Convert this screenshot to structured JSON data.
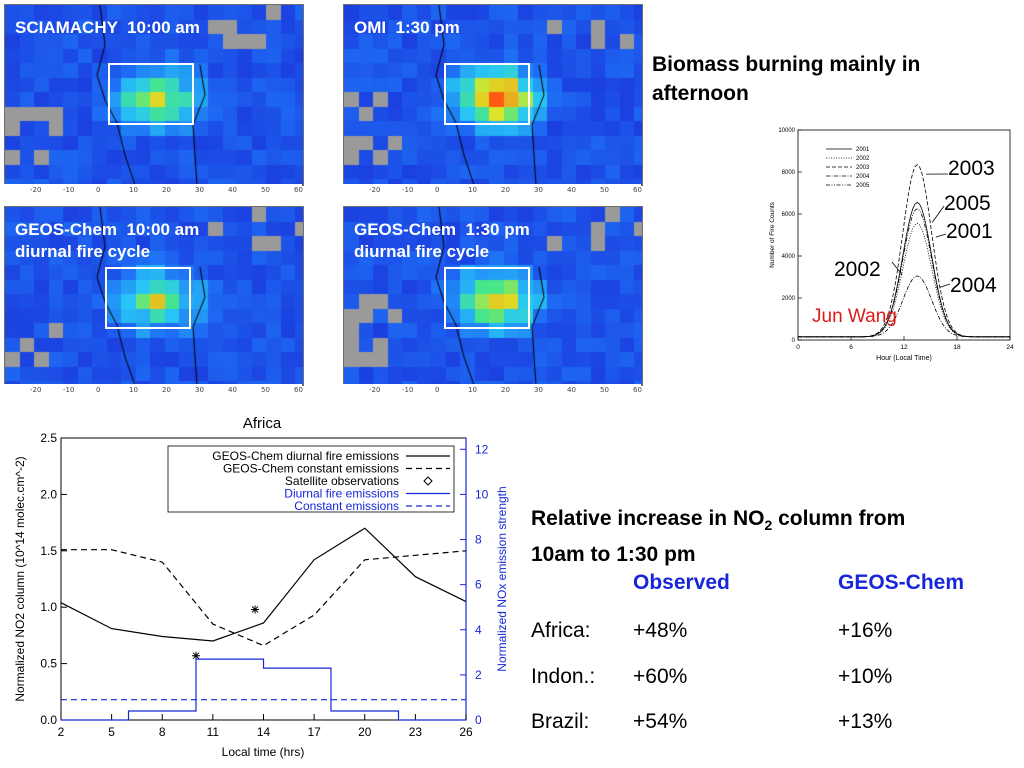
{
  "maps": [
    {
      "title": "SCIAMACHY  10:00 am",
      "intensity": 0.45
    },
    {
      "title": "OMI  1:30 pm",
      "intensity": 0.9
    },
    {
      "title": "GEOS-Chem  10:00 am\ndiurnal fire cycle",
      "intensity": 0.35
    },
    {
      "title": "GEOS-Chem  1:30 pm\ndiurnal fire cycle",
      "intensity": 0.6
    }
  ],
  "map_ticks": [
    "-20",
    "-10",
    "0",
    "10",
    "20",
    "30",
    "40",
    "50",
    "60"
  ],
  "caption": {
    "line1": "Biomass burning mainly in",
    "line2": "afternoon"
  },
  "fire_inset": {
    "ylabel": "Number of Fire Counts",
    "xlabel": "Hour (Local Time)",
    "y_ticks": [
      "0",
      "2000",
      "4000",
      "6000",
      "8000",
      "10000"
    ],
    "x_ticks": [
      "0",
      "6",
      "12",
      "18",
      "24"
    ],
    "legend": [
      "2001",
      "2002",
      "2003",
      "2004",
      "2005"
    ],
    "callouts": [
      "2003",
      "2005",
      "2001",
      "2002",
      "2004"
    ],
    "author": "Jun Wang"
  },
  "chart_data": {
    "type": "line",
    "title": "Africa",
    "xlabel": "Local time (hrs)",
    "ylabel": "Normalized NO2 column (10^14 molec.cm^-2)",
    "y2label": "Normalized NOx emission strength",
    "xlim": [
      2,
      26
    ],
    "ylim": [
      0.0,
      2.5
    ],
    "y2lim": [
      0,
      12.5
    ],
    "x_ticks": [
      "2",
      "5",
      "8",
      "11",
      "14",
      "17",
      "20",
      "23",
      "26"
    ],
    "y_ticks": [
      "0.0",
      "0.5",
      "1.0",
      "1.5",
      "2.0",
      "2.5"
    ],
    "y2_ticks": [
      "0",
      "2",
      "4",
      "6",
      "8",
      "10",
      "12"
    ],
    "series": [
      {
        "name": "GEOS-Chem diurnal fire emissions",
        "axis": "left",
        "style": "solid",
        "color": "#000000",
        "x": [
          2,
          5,
          8,
          11,
          14,
          17,
          20,
          23,
          26
        ],
        "y": [
          1.04,
          0.81,
          0.74,
          0.7,
          0.86,
          1.42,
          1.7,
          1.27,
          1.05
        ]
      },
      {
        "name": "GEOS-Chem constant emissions",
        "axis": "left",
        "style": "dashed",
        "color": "#000000",
        "x": [
          2,
          5,
          8,
          11,
          14,
          17,
          20,
          23,
          26
        ],
        "y": [
          1.51,
          1.51,
          1.4,
          0.85,
          0.66,
          0.93,
          1.42,
          1.46,
          1.5
        ]
      },
      {
        "name": "Satellite observations",
        "axis": "left",
        "style": "marker",
        "color": "#000000",
        "x": [
          10,
          13.5
        ],
        "y": [
          0.57,
          0.98
        ]
      },
      {
        "name": "Diurnal fire emissions",
        "axis": "right",
        "style": "step",
        "color": "#1727d8",
        "x": [
          2,
          6,
          6,
          10,
          10,
          14,
          14,
          18,
          18,
          22,
          22,
          26
        ],
        "y": [
          0,
          0,
          0.4,
          0.4,
          2.7,
          2.7,
          2.3,
          2.3,
          0.4,
          0.4,
          0,
          0
        ]
      },
      {
        "name": "Constant emissions",
        "axis": "right",
        "style": "dashed",
        "color": "#1727d8",
        "x": [
          2,
          26
        ],
        "y": [
          0.9,
          0.9
        ]
      }
    ],
    "legend_position": "top-right",
    "grid": false
  },
  "table": {
    "heading_line1_pre": "Relative increase in NO",
    "heading_line1_sub": "2",
    "heading_line1_post": " column from",
    "heading_line2": "10am to 1:30 pm",
    "col_headers": [
      "Observed",
      "GEOS-Chem"
    ],
    "rows": [
      {
        "region": "Africa:",
        "observed": "+48%",
        "model": "+16%"
      },
      {
        "region": "Indon.:",
        "observed": "+60%",
        "model": "+10%"
      },
      {
        "region": "Brazil:",
        "observed": "+54%",
        "model": "+13%"
      }
    ]
  },
  "colors": {
    "accent_blue": "#1727d8",
    "author_red": "#dd1a1a"
  }
}
